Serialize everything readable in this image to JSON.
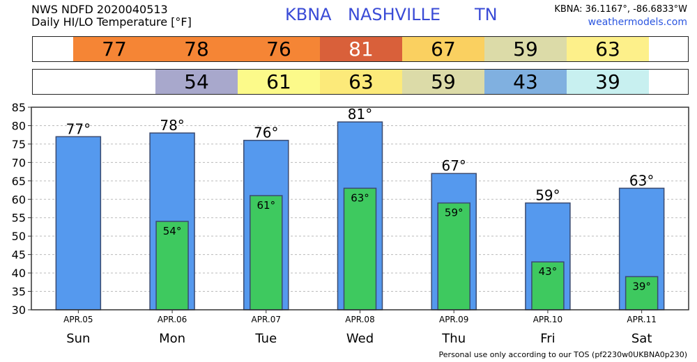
{
  "header": {
    "line1": "NWS NDFD 2020040513",
    "line2": "Daily HI/LO Temperature [°F]",
    "station_code": "KBNA",
    "station_city": "NASHVILLE",
    "station_state": "TN",
    "coords": "KBNA: 36.1167°, -86.6833°W",
    "site": "weathermodels.com"
  },
  "footer": "Personal use only according to our TOS (pf2230w0UKBNA0p230)",
  "colors": {
    "bar_hi": "#5599ee",
    "bar_lo": "#3ec95f",
    "hi_cells": [
      "#f58535",
      "#f58535",
      "#f58535",
      "#d9603a",
      "#fad060",
      "#dcdba8",
      "#fdf08a"
    ],
    "lo_cells": [
      null,
      "#a8a8cc",
      "#fcfa8a",
      "#fcea7a",
      "#dcdba8",
      "#80b0e0",
      "#c8f0f0"
    ]
  },
  "chart_data": {
    "type": "bar",
    "categories": [
      "Sun",
      "Mon",
      "Tue",
      "Wed",
      "Thu",
      "Fri",
      "Sat"
    ],
    "dates": [
      "APR.05",
      "APR.06",
      "APR.07",
      "APR.08",
      "APR.09",
      "APR.10",
      "APR.11"
    ],
    "series": [
      {
        "values": [
          77,
          78,
          76,
          81,
          67,
          59,
          63
        ]
      },
      {
        "values": [
          null,
          54,
          61,
          63,
          59,
          43,
          39
        ]
      }
    ],
    "hi_labels": [
      "77°",
      "78°",
      "76°",
      "81°",
      "67°",
      "59°",
      "63°"
    ],
    "lo_labels": [
      "",
      "54°",
      "61°",
      "63°",
      "59°",
      "43°",
      "39°"
    ],
    "hi_strip": [
      "77",
      "78",
      "76",
      "81",
      "67",
      "59",
      "63"
    ],
    "lo_strip": [
      "",
      "54",
      "61",
      "63",
      "59",
      "43",
      "39"
    ],
    "yticks": [
      "30",
      "35",
      "40",
      "45",
      "50",
      "55",
      "60",
      "65",
      "70",
      "75",
      "80",
      "85"
    ],
    "ylim": [
      30,
      85
    ],
    "grid": true
  }
}
